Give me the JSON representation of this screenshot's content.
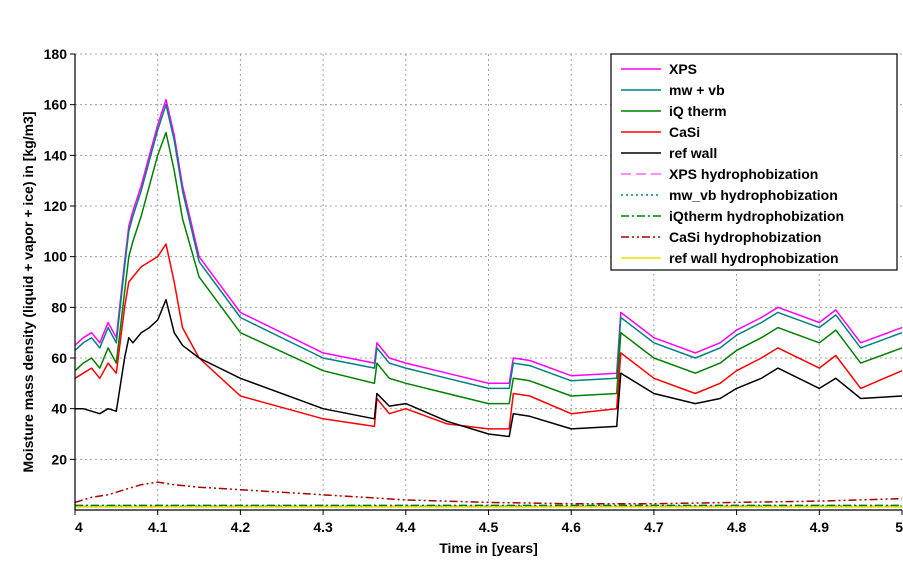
{
  "chart_data": {
    "type": "line",
    "title": "",
    "xlabel": "Time in [years]",
    "ylabel": "Moisture mass density (liquid + vapor + ice) in [kg/m3]",
    "xlim": [
      4,
      5
    ],
    "ylim": [
      0,
      180
    ],
    "x_ticks": [
      "4",
      "4.1",
      "4.2",
      "4.3",
      "4.4",
      "4.5",
      "4.6",
      "4.7",
      "4.8",
      "4.9",
      "5"
    ],
    "y_ticks": [
      "20",
      "40",
      "60",
      "80",
      "100",
      "120",
      "140",
      "160",
      "180"
    ],
    "grid": true,
    "legend_position": "top-right",
    "series": [
      {
        "name": "XPS",
        "color": "#ff00ff",
        "style": "solid",
        "x": [
          4.0,
          4.01,
          4.02,
          4.03,
          4.04,
          4.05,
          4.06,
          4.065,
          4.07,
          4.08,
          4.09,
          4.1,
          4.11,
          4.12,
          4.13,
          4.15,
          4.2,
          4.3,
          4.362,
          4.365,
          4.38,
          4.4,
          4.45,
          4.5,
          4.525,
          4.53,
          4.55,
          4.6,
          4.655,
          4.66,
          4.7,
          4.75,
          4.78,
          4.8,
          4.83,
          4.85,
          4.9,
          4.92,
          4.95,
          5.0
        ],
        "y": [
          65,
          68,
          70,
          66,
          74,
          68,
          98,
          112,
          118,
          128,
          140,
          152,
          162,
          148,
          128,
          100,
          78,
          62,
          58,
          66,
          60,
          58,
          54,
          50,
          50,
          60,
          59,
          53,
          54,
          78,
          68,
          62,
          66,
          71,
          76,
          80,
          74,
          79,
          66,
          72
        ]
      },
      {
        "name": "mw + vb",
        "color": "#008080",
        "style": "solid",
        "x": [
          4.0,
          4.01,
          4.02,
          4.03,
          4.04,
          4.05,
          4.06,
          4.065,
          4.07,
          4.08,
          4.09,
          4.1,
          4.11,
          4.12,
          4.13,
          4.15,
          4.2,
          4.3,
          4.362,
          4.365,
          4.38,
          4.4,
          4.45,
          4.5,
          4.525,
          4.53,
          4.55,
          4.6,
          4.655,
          4.66,
          4.7,
          4.75,
          4.78,
          4.8,
          4.83,
          4.85,
          4.9,
          4.92,
          4.95,
          5.0
        ],
        "y": [
          63,
          66,
          68,
          64,
          72,
          66,
          96,
          110,
          116,
          126,
          138,
          150,
          160,
          146,
          126,
          98,
          76,
          60,
          56,
          64,
          58,
          56,
          52,
          48,
          48,
          58,
          57,
          51,
          52,
          76,
          66,
          60,
          64,
          69,
          74,
          78,
          72,
          77,
          64,
          70
        ]
      },
      {
        "name": "iQ therm",
        "color": "#008000",
        "style": "solid",
        "x": [
          4.0,
          4.01,
          4.02,
          4.03,
          4.04,
          4.05,
          4.06,
          4.065,
          4.07,
          4.08,
          4.09,
          4.1,
          4.11,
          4.12,
          4.13,
          4.15,
          4.2,
          4.3,
          4.362,
          4.365,
          4.38,
          4.4,
          4.45,
          4.5,
          4.525,
          4.53,
          4.55,
          4.6,
          4.655,
          4.66,
          4.7,
          4.75,
          4.78,
          4.8,
          4.83,
          4.85,
          4.9,
          4.92,
          4.95,
          5.0
        ],
        "y": [
          55,
          58,
          60,
          56,
          64,
          58,
          86,
          100,
          106,
          116,
          128,
          140,
          149,
          134,
          115,
          92,
          70,
          55,
          50,
          58,
          52,
          50,
          46,
          42,
          42,
          52,
          51,
          45,
          46,
          70,
          60,
          54,
          58,
          63,
          68,
          72,
          66,
          71,
          58,
          64
        ]
      },
      {
        "name": "CaSi",
        "color": "#ff0000",
        "style": "solid",
        "x": [
          4.0,
          4.01,
          4.02,
          4.03,
          4.04,
          4.05,
          4.06,
          4.065,
          4.07,
          4.08,
          4.09,
          4.1,
          4.11,
          4.12,
          4.13,
          4.15,
          4.2,
          4.3,
          4.362,
          4.365,
          4.38,
          4.4,
          4.45,
          4.5,
          4.525,
          4.53,
          4.55,
          4.6,
          4.655,
          4.66,
          4.7,
          4.75,
          4.78,
          4.8,
          4.83,
          4.85,
          4.9,
          4.92,
          4.95,
          5.0
        ],
        "y": [
          52,
          54,
          56,
          52,
          58,
          54,
          80,
          90,
          92,
          96,
          98,
          100,
          105,
          90,
          72,
          60,
          45,
          36,
          33,
          44,
          38,
          40,
          34,
          32,
          32,
          46,
          45,
          38,
          40,
          62,
          52,
          46,
          50,
          55,
          60,
          64,
          56,
          61,
          48,
          55
        ]
      },
      {
        "name": "ref wall",
        "color": "#000000",
        "style": "solid",
        "x": [
          4.0,
          4.01,
          4.02,
          4.03,
          4.04,
          4.05,
          4.06,
          4.065,
          4.07,
          4.08,
          4.09,
          4.1,
          4.11,
          4.12,
          4.13,
          4.15,
          4.2,
          4.3,
          4.362,
          4.365,
          4.38,
          4.4,
          4.45,
          4.5,
          4.525,
          4.53,
          4.55,
          4.6,
          4.655,
          4.66,
          4.7,
          4.75,
          4.78,
          4.8,
          4.83,
          4.85,
          4.9,
          4.92,
          4.95,
          5.0
        ],
        "y": [
          40,
          40,
          39,
          38,
          40,
          39,
          60,
          68,
          66,
          70,
          72,
          75,
          83,
          70,
          65,
          60,
          52,
          40,
          36,
          46,
          41,
          42,
          35,
          30,
          29,
          38,
          37,
          32,
          33,
          54,
          46,
          42,
          44,
          48,
          52,
          56,
          48,
          52,
          44,
          45
        ]
      },
      {
        "name": "XPS hydrophobization",
        "color": "#ff66ff",
        "style": "dashed",
        "x": [
          4.0,
          5.0
        ],
        "y": [
          1.5,
          1.5
        ]
      },
      {
        "name": "mw_vb hydrophobization",
        "color": "#008080",
        "style": "dotted",
        "x": [
          4.0,
          5.0
        ],
        "y": [
          1.5,
          1.5
        ]
      },
      {
        "name": "iQtherm hydrophobization",
        "color": "#008000",
        "style": "dashdot",
        "x": [
          4.0,
          5.0
        ],
        "y": [
          1.8,
          1.8
        ]
      },
      {
        "name": "CaSi hydrophobization",
        "color": "#aa0000",
        "style": "dashdotdot",
        "x": [
          4.0,
          4.02,
          4.04,
          4.06,
          4.08,
          4.1,
          4.12,
          4.15,
          4.2,
          4.3,
          4.4,
          4.5,
          4.6,
          4.7,
          4.8,
          4.9,
          4.95,
          5.0
        ],
        "y": [
          3,
          5,
          6,
          8,
          10,
          11,
          10,
          9,
          8,
          6,
          4,
          3,
          2.5,
          2.5,
          3,
          3.5,
          4,
          4.5
        ]
      },
      {
        "name": "ref wall hydrophobization",
        "color": "#e6e600",
        "style": "solid",
        "x": [
          4.0,
          5.0
        ],
        "y": [
          1.2,
          1.2
        ]
      }
    ]
  }
}
